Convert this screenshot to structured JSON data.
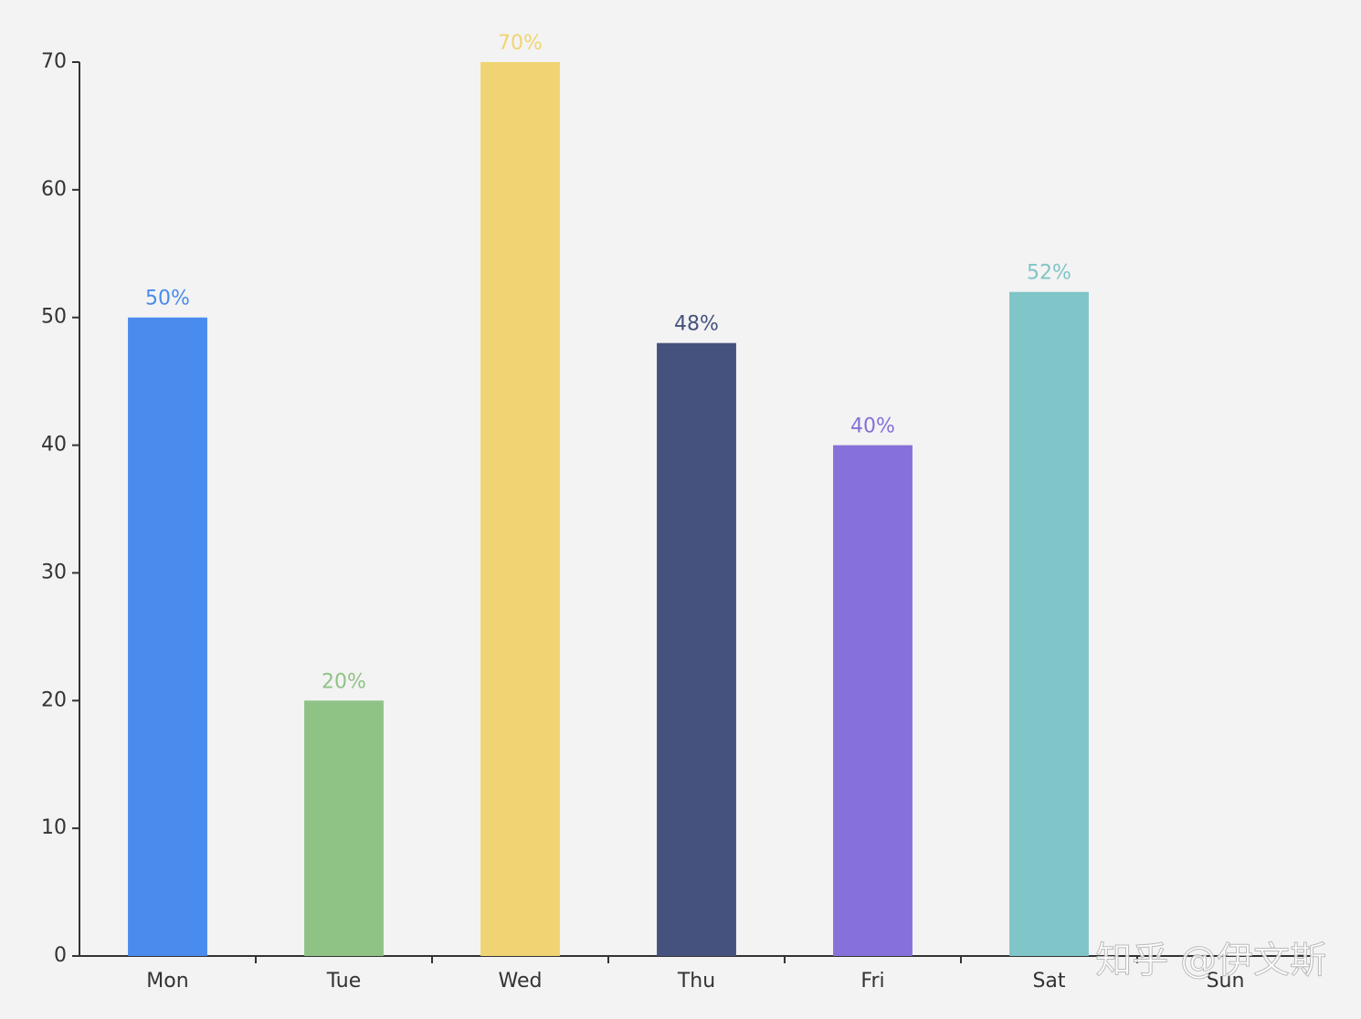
{
  "chart_data": {
    "type": "bar",
    "categories": [
      "Mon",
      "Tue",
      "Wed",
      "Thu",
      "Fri",
      "Sat",
      "Sun"
    ],
    "values": [
      50,
      20,
      70,
      48,
      40,
      52,
      null
    ],
    "value_labels": [
      "50%",
      "20%",
      "70%",
      "48%",
      "40%",
      "52%",
      null
    ],
    "colors": [
      "#4a8bee",
      "#8fc386",
      "#f0d473",
      "#45527e",
      "#8670d9",
      "#80c5c7",
      null
    ],
    "ylim": [
      0,
      70
    ],
    "yticks": [
      0,
      10,
      20,
      30,
      40,
      50,
      60,
      70
    ],
    "watermark": "知乎 @伊文斯"
  }
}
